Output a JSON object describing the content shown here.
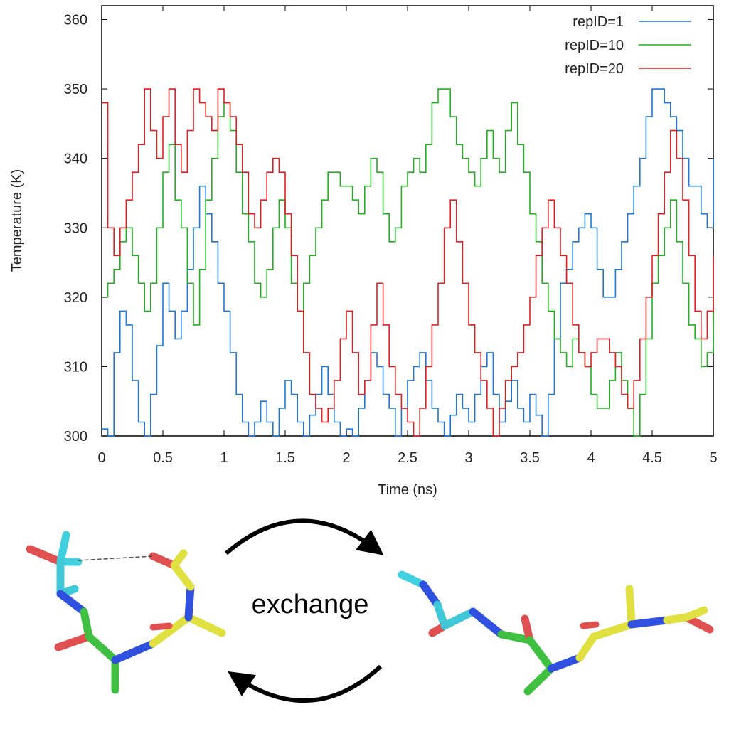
{
  "chart_data": {
    "type": "line",
    "title": "",
    "xlabel": "Time (ns)",
    "ylabel": "Temperature (K)",
    "xlim": [
      0,
      5
    ],
    "ylim": [
      300,
      362
    ],
    "x_ticks": [
      "0",
      "0.5",
      "1",
      "1.5",
      "2",
      "2.5",
      "3",
      "3.5",
      "4",
      "4.5",
      "5"
    ],
    "y_ticks": [
      "300",
      "310",
      "320",
      "330",
      "340",
      "350",
      "360"
    ],
    "grid": false,
    "legend_position": "top-right",
    "step": true,
    "series": [
      {
        "name": "repID=1",
        "color": "#1f77d4",
        "x": [
          0,
          0.05,
          0.1,
          0.15,
          0.2,
          0.25,
          0.3,
          0.35,
          0.4,
          0.45,
          0.5,
          0.55,
          0.6,
          0.65,
          0.7,
          0.75,
          0.8,
          0.85,
          0.9,
          0.95,
          1.0,
          1.05,
          1.1,
          1.15,
          1.2,
          1.25,
          1.3,
          1.35,
          1.4,
          1.45,
          1.5,
          1.55,
          1.6,
          1.65,
          1.7,
          1.75,
          1.8,
          1.85,
          1.9,
          1.95,
          2.0,
          2.05,
          2.1,
          2.15,
          2.2,
          2.25,
          2.3,
          2.35,
          2.4,
          2.45,
          2.5,
          2.55,
          2.6,
          2.65,
          2.7,
          2.75,
          2.8,
          2.85,
          2.9,
          2.95,
          3.0,
          3.05,
          3.1,
          3.15,
          3.2,
          3.25,
          3.3,
          3.35,
          3.4,
          3.45,
          3.5,
          3.55,
          3.6,
          3.65,
          3.7,
          3.75,
          3.8,
          3.85,
          3.9,
          3.95,
          4.0,
          4.05,
          4.1,
          4.15,
          4.2,
          4.25,
          4.3,
          4.35,
          4.4,
          4.45,
          4.5,
          4.55,
          4.6,
          4.65,
          4.7,
          4.75,
          4.8,
          4.85,
          4.9,
          4.95,
          5.0
        ],
        "values": [
          301,
          300,
          312,
          318,
          316,
          308,
          302,
          300,
          306,
          313,
          322,
          318,
          314,
          318,
          324,
          330,
          336,
          332,
          328,
          322,
          318,
          312,
          306,
          302,
          300,
          302,
          305,
          302,
          300,
          304,
          308,
          306,
          302,
          300,
          303,
          306,
          310,
          306,
          302,
          300,
          301,
          300,
          304,
          308,
          312,
          310,
          306,
          304,
          300,
          304,
          308,
          310,
          312,
          308,
          304,
          302,
          300,
          303,
          306,
          304,
          302,
          306,
          310,
          312,
          306,
          302,
          305,
          308,
          304,
          302,
          306,
          303,
          300,
          306,
          314,
          322,
          324,
          328,
          330,
          332,
          330,
          324,
          320,
          320,
          324,
          328,
          332,
          336,
          340,
          346,
          350,
          350,
          348,
          346,
          344,
          340,
          336,
          336,
          332,
          330,
          340
        ]
      },
      {
        "name": "repID=10",
        "color": "#22b022",
        "x": [
          0,
          0.05,
          0.1,
          0.15,
          0.2,
          0.25,
          0.3,
          0.35,
          0.4,
          0.45,
          0.5,
          0.55,
          0.6,
          0.65,
          0.7,
          0.75,
          0.8,
          0.85,
          0.9,
          0.95,
          1.0,
          1.05,
          1.1,
          1.15,
          1.2,
          1.25,
          1.3,
          1.35,
          1.4,
          1.45,
          1.5,
          1.55,
          1.6,
          1.65,
          1.7,
          1.75,
          1.8,
          1.85,
          1.9,
          1.95,
          2.0,
          2.05,
          2.1,
          2.15,
          2.2,
          2.25,
          2.3,
          2.35,
          2.4,
          2.45,
          2.5,
          2.55,
          2.6,
          2.65,
          2.7,
          2.75,
          2.8,
          2.85,
          2.9,
          2.95,
          3.0,
          3.05,
          3.1,
          3.15,
          3.2,
          3.25,
          3.3,
          3.35,
          3.4,
          3.45,
          3.5,
          3.55,
          3.6,
          3.65,
          3.7,
          3.75,
          3.8,
          3.85,
          3.9,
          3.95,
          4.0,
          4.05,
          4.1,
          4.15,
          4.2,
          4.25,
          4.3,
          4.35,
          4.4,
          4.45,
          4.5,
          4.55,
          4.6,
          4.65,
          4.7,
          4.75,
          4.8,
          4.85,
          4.9,
          4.95,
          5.0
        ],
        "values": [
          320,
          322,
          324,
          328,
          330,
          326,
          322,
          318,
          322,
          330,
          338,
          342,
          334,
          330,
          322,
          316,
          324,
          334,
          340,
          346,
          348,
          344,
          338,
          332,
          328,
          322,
          320,
          324,
          330,
          334,
          330,
          322,
          318,
          322,
          326,
          330,
          334,
          338,
          338,
          336,
          336,
          334,
          332,
          336,
          340,
          338,
          332,
          328,
          330,
          336,
          338,
          340,
          338,
          342,
          348,
          350,
          350,
          346,
          342,
          340,
          338,
          336,
          340,
          344,
          340,
          338,
          344,
          348,
          342,
          338,
          332,
          328,
          322,
          318,
          314,
          312,
          310,
          314,
          312,
          310,
          306,
          304,
          304,
          308,
          312,
          308,
          304,
          300,
          306,
          314,
          322,
          326,
          330,
          334,
          328,
          322,
          316,
          314,
          310,
          312,
          318
        ]
      },
      {
        "name": "repID=20",
        "color": "#e02020",
        "x": [
          0,
          0.05,
          0.1,
          0.15,
          0.2,
          0.25,
          0.3,
          0.35,
          0.4,
          0.45,
          0.5,
          0.55,
          0.6,
          0.65,
          0.7,
          0.75,
          0.8,
          0.85,
          0.9,
          0.95,
          1.0,
          1.05,
          1.1,
          1.15,
          1.2,
          1.25,
          1.3,
          1.35,
          1.4,
          1.45,
          1.5,
          1.55,
          1.6,
          1.65,
          1.7,
          1.75,
          1.8,
          1.85,
          1.9,
          1.95,
          2.0,
          2.05,
          2.1,
          2.15,
          2.2,
          2.25,
          2.3,
          2.35,
          2.4,
          2.45,
          2.5,
          2.55,
          2.6,
          2.65,
          2.7,
          2.75,
          2.8,
          2.85,
          2.9,
          2.95,
          3.0,
          3.05,
          3.1,
          3.15,
          3.2,
          3.25,
          3.3,
          3.35,
          3.4,
          3.45,
          3.5,
          3.55,
          3.6,
          3.65,
          3.7,
          3.75,
          3.8,
          3.85,
          3.9,
          3.95,
          4.0,
          4.05,
          4.1,
          4.15,
          4.2,
          4.25,
          4.3,
          4.35,
          4.4,
          4.45,
          4.5,
          4.55,
          4.6,
          4.65,
          4.7,
          4.75,
          4.8,
          4.85,
          4.9,
          4.95,
          5.0
        ],
        "values": [
          348,
          330,
          326,
          330,
          334,
          338,
          342,
          350,
          344,
          340,
          346,
          350,
          342,
          338,
          344,
          350,
          348,
          346,
          344,
          350,
          348,
          346,
          342,
          338,
          332,
          330,
          334,
          338,
          340,
          338,
          332,
          326,
          318,
          312,
          306,
          304,
          302,
          304,
          308,
          314,
          318,
          312,
          306,
          308,
          316,
          322,
          316,
          310,
          306,
          304,
          302,
          300,
          304,
          310,
          316,
          322,
          330,
          334,
          328,
          322,
          316,
          312,
          308,
          304,
          300,
          304,
          308,
          310,
          312,
          316,
          320,
          326,
          330,
          334,
          330,
          326,
          322,
          316,
          312,
          310,
          312,
          314,
          314,
          312,
          310,
          306,
          304,
          308,
          314,
          320,
          326,
          332,
          338,
          344,
          340,
          334,
          326,
          318,
          314,
          318,
          326
        ]
      }
    ]
  },
  "diagram": {
    "exchange_label": "exchange"
  }
}
